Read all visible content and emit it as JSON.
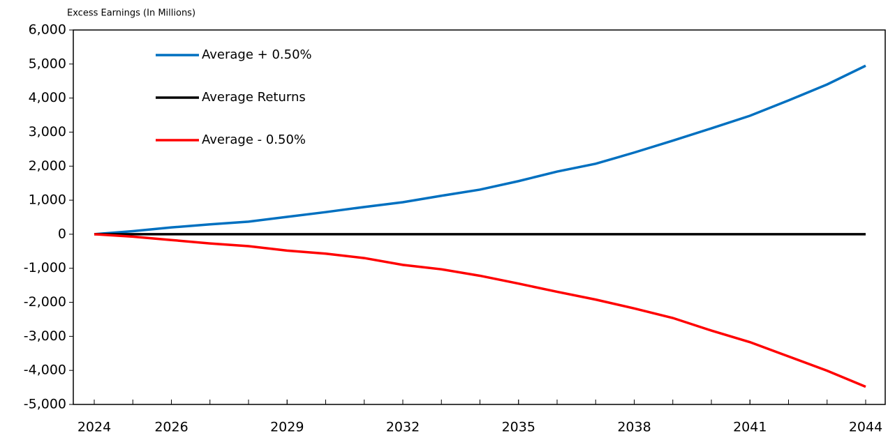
{
  "chart_data": {
    "type": "line",
    "ylabel": "Excess Earnings (In Millions)",
    "x": [
      2024,
      2025,
      2026,
      2027,
      2028,
      2029,
      2030,
      2031,
      2032,
      2033,
      2034,
      2035,
      2036,
      2037,
      2038,
      2039,
      2040,
      2041,
      2042,
      2043,
      2044
    ],
    "series": [
      {
        "name": "Average + 0.50%",
        "color": "#0070c0",
        "values": [
          0,
          90,
          200,
          290,
          370,
          510,
          650,
          800,
          940,
          1130,
          1310,
          1560,
          1840,
          2070,
          2400,
          2750,
          3110,
          3480,
          3930,
          4400,
          4950
        ]
      },
      {
        "name": "Average Returns",
        "color": "#000000",
        "values": [
          0,
          0,
          0,
          0,
          0,
          0,
          0,
          0,
          0,
          0,
          0,
          0,
          0,
          0,
          0,
          0,
          0,
          0,
          0,
          0,
          0
        ]
      },
      {
        "name": "Average - 0.50%",
        "color": "#ff0000",
        "values": [
          0,
          -70,
          -170,
          -270,
          -350,
          -480,
          -570,
          -700,
          -900,
          -1030,
          -1220,
          -1450,
          -1690,
          -1920,
          -2180,
          -2460,
          -2830,
          -3170,
          -3590,
          -4010,
          -4480
        ]
      }
    ],
    "xlim": [
      2024,
      2044
    ],
    "xticks": [
      2024,
      2026,
      2029,
      2032,
      2035,
      2038,
      2041,
      2044
    ],
    "ylim": [
      -5000,
      6000
    ],
    "yticks": [
      {
        "value": -5000,
        "label": "-5,000"
      },
      {
        "value": -4000,
        "label": "-4,000"
      },
      {
        "value": -3000,
        "label": "-3,000"
      },
      {
        "value": -2000,
        "label": "-2,000"
      },
      {
        "value": -1000,
        "label": "-1,000"
      },
      0,
      {
        "value": 1000,
        "label": "1,000"
      },
      {
        "value": 2000,
        "label": "2,000"
      },
      {
        "value": 3000,
        "label": "3,000"
      },
      {
        "value": 4000,
        "label": "4,000"
      },
      {
        "value": 5000,
        "label": "5,000"
      },
      {
        "value": 6000,
        "label": "6,000"
      }
    ],
    "grid": false,
    "legend": "upper left"
  }
}
